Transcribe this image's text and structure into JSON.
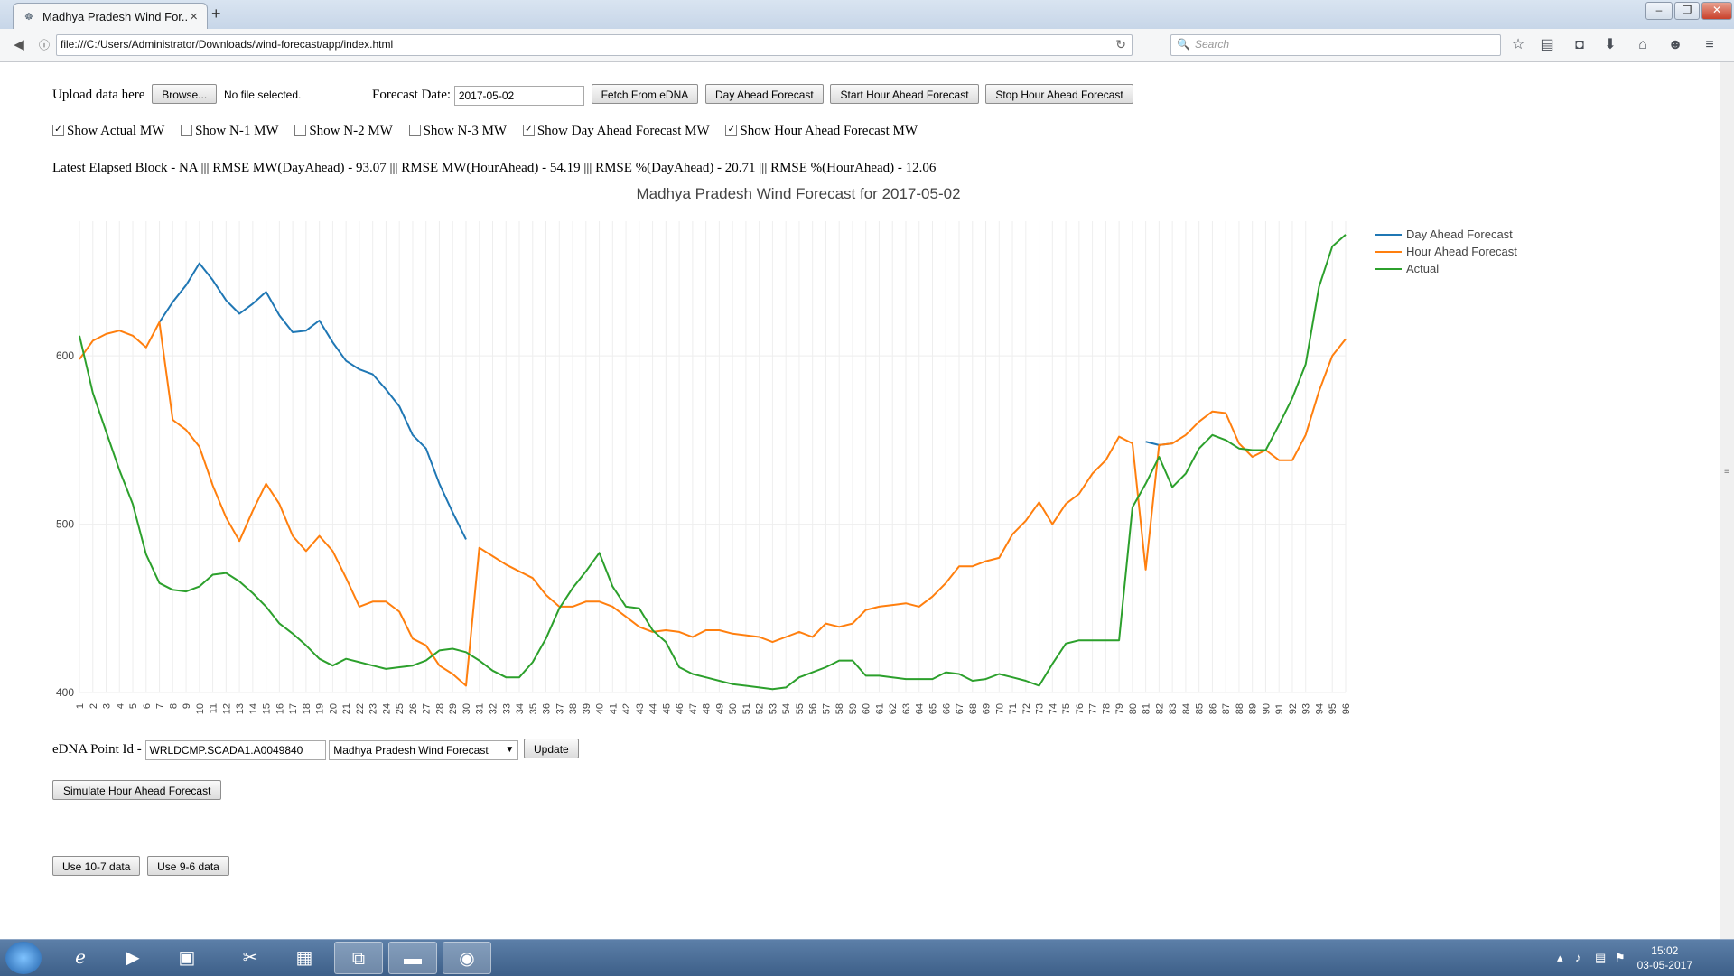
{
  "browser": {
    "tab_title": "Madhya Pradesh Wind For...",
    "url": "file:///C:/Users/Administrator/Downloads/wind-forecast/app/index.html",
    "search_placeholder": "Search"
  },
  "controls": {
    "upload_label": "Upload data here",
    "browse_button": "Browse...",
    "file_status": "No file selected.",
    "forecast_date_label": "Forecast Date:",
    "forecast_date_value": "2017-05-02",
    "fetch_button": "Fetch From eDNA",
    "day_ahead_button": "Day Ahead Forecast",
    "start_hour_ahead_button": "Start Hour Ahead Forecast",
    "stop_hour_ahead_button": "Stop Hour Ahead Forecast"
  },
  "checkboxes": [
    {
      "label": "Show Actual MW",
      "checked": true
    },
    {
      "label": "Show N-1 MW",
      "checked": false
    },
    {
      "label": "Show N-2 MW",
      "checked": false
    },
    {
      "label": "Show N-3 MW",
      "checked": false
    },
    {
      "label": "Show Day Ahead Forecast MW",
      "checked": true
    },
    {
      "label": "Show Hour Ahead Forecast MW",
      "checked": true
    }
  ],
  "stats_text": "Latest Elapsed Block - NA ||| RMSE MW(DayAhead) - 93.07 ||| RMSE MW(HourAhead) - 54.19 ||| RMSE %(DayAhead) - 20.71 ||| RMSE %(HourAhead) - 12.06",
  "chart_data": {
    "type": "line",
    "title": "Madhya Pradesh Wind Forecast for 2017-05-02",
    "xlabel": "",
    "ylabel": "",
    "ylim": [
      400,
      680
    ],
    "yticks": [
      400,
      500,
      600
    ],
    "x": [
      1,
      2,
      3,
      4,
      5,
      6,
      7,
      8,
      9,
      10,
      11,
      12,
      13,
      14,
      15,
      16,
      17,
      18,
      19,
      20,
      21,
      22,
      23,
      24,
      25,
      26,
      27,
      28,
      29,
      30,
      31,
      32,
      33,
      34,
      35,
      36,
      37,
      38,
      39,
      40,
      41,
      42,
      43,
      44,
      45,
      46,
      47,
      48,
      49,
      50,
      51,
      52,
      53,
      54,
      55,
      56,
      57,
      58,
      59,
      60,
      61,
      62,
      63,
      64,
      65,
      66,
      67,
      68,
      69,
      70,
      71,
      72,
      73,
      74,
      75,
      76,
      77,
      78,
      79,
      80,
      81,
      82,
      83,
      84,
      85,
      86,
      87,
      88,
      89,
      90,
      91,
      92,
      93,
      94,
      95,
      96
    ],
    "legend_position": "top-right",
    "series": [
      {
        "name": "Day Ahead Forecast",
        "color": "#1f77b4",
        "values": [
          null,
          null,
          null,
          null,
          null,
          null,
          620,
          632,
          642,
          655,
          645,
          633,
          625,
          631,
          638,
          624,
          614,
          615,
          621,
          608,
          597,
          592,
          589,
          580,
          570,
          553,
          545,
          524,
          507,
          491,
          null,
          null,
          null,
          null,
          null,
          null,
          null,
          null,
          null,
          null,
          null,
          null,
          null,
          null,
          null,
          null,
          null,
          null,
          null,
          null,
          null,
          null,
          null,
          null,
          null,
          null,
          null,
          null,
          null,
          null,
          null,
          null,
          null,
          null,
          null,
          null,
          null,
          null,
          null,
          null,
          null,
          null,
          null,
          null,
          null,
          null,
          null,
          null,
          null,
          null,
          549,
          547,
          548,
          null,
          null,
          null,
          null,
          null,
          null,
          null,
          null,
          null,
          null,
          null,
          null,
          null
        ]
      },
      {
        "name": "Hour Ahead Forecast",
        "color": "#ff7f0e",
        "values": [
          598,
          609,
          613,
          615,
          612,
          605,
          620,
          562,
          556,
          546,
          523,
          504,
          490,
          508,
          524,
          512,
          493,
          484,
          493,
          484,
          468,
          451,
          454,
          454,
          448,
          432,
          428,
          416,
          411,
          404,
          486,
          481,
          476,
          472,
          468,
          458,
          451,
          451,
          454,
          454,
          451,
          445,
          439,
          436,
          437,
          436,
          433,
          437,
          437,
          435,
          434,
          433,
          430,
          433,
          436,
          433,
          441,
          439,
          441,
          449,
          451,
          452,
          453,
          451,
          457,
          465,
          475,
          475,
          478,
          480,
          494,
          502,
          513,
          500,
          512,
          518,
          530,
          538,
          552,
          548,
          473,
          547,
          548,
          553,
          561,
          567,
          566,
          548,
          540,
          544,
          538,
          538,
          553,
          579,
          600,
          610
        ]
      },
      {
        "name": "Actual",
        "color": "#2ca02c",
        "values": [
          612,
          578,
          555,
          532,
          512,
          482,
          465,
          461,
          460,
          463,
          470,
          471,
          466,
          459,
          451,
          441,
          435,
          428,
          420,
          416,
          420,
          418,
          416,
          414,
          415,
          416,
          419,
          425,
          426,
          424,
          419,
          413,
          409,
          409,
          418,
          432,
          450,
          462,
          472,
          483,
          463,
          451,
          450,
          437,
          430,
          415,
          411,
          409,
          407,
          405,
          404,
          403,
          402,
          403,
          409,
          412,
          415,
          419,
          419,
          410,
          410,
          409,
          408,
          408,
          408,
          412,
          411,
          407,
          408,
          411,
          409,
          407,
          404,
          417,
          429,
          431,
          431,
          431,
          431,
          510,
          524,
          540,
          522,
          530,
          545,
          553,
          550,
          545,
          544,
          544,
          559,
          575,
          595,
          641,
          665,
          672
        ]
      }
    ]
  },
  "lower": {
    "edna_label": "eDNA Point Id -",
    "edna_value": "WRLDCMP.SCADA1.A0049840",
    "select_value": "Madhya Pradesh Wind Forecast",
    "update_button": "Update",
    "simulate_button": "Simulate Hour Ahead Forecast",
    "use_10_7_button": "Use 10-7 data",
    "use_9_6_button": "Use 9-6 data"
  },
  "taskbar": {
    "time": "15:02",
    "date": "03-05-2017"
  },
  "icons": [
    "back-icon",
    "info-icon",
    "reload-icon",
    "search-icon",
    "bookmark-star-icon",
    "reading-list-icon",
    "pocket-icon",
    "download-icon",
    "home-icon",
    "chat-icon",
    "menu-icon"
  ]
}
